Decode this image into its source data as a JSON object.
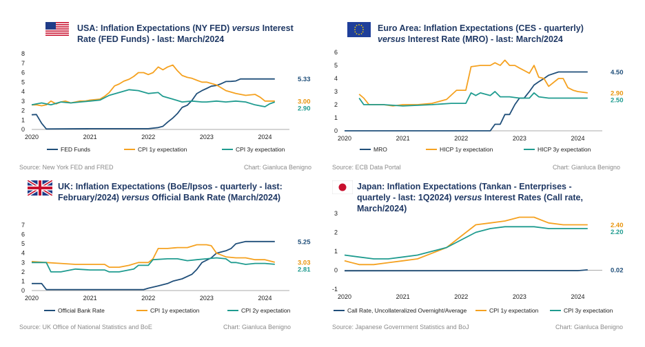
{
  "colors": {
    "navy": "#1f4e79",
    "orange": "#f5a11f",
    "teal": "#1e9b8f",
    "last_orange": "#e8940c"
  },
  "charts": [
    {
      "title": [
        "USA: Inflation Expectations (NY FED) ",
        "versus",
        " Interest Rate (FED Funds) - last: March/2024"
      ],
      "flag": "us-flag-icon",
      "source": "Source: New York FED and FRED",
      "credit": "Chart: Gianluca Benigno"
    },
    {
      "title": [
        "Euro Area: Inflation Expectations (CES - quarterly) ",
        "versus",
        " Interest Rate (MRO)  - last: March/2024"
      ],
      "flag": "eu-flag-icon",
      "source": "Source: ECB Data Portal",
      "credit": "Chart: Gianluca Benigno"
    },
    {
      "title": [
        "UK: Inflation Expectations (BoE/Ipsos - quarterly - last: February/2024) ",
        "versus",
        " Official Bank Rate (March/2024)"
      ],
      "flag": "uk-flag-icon",
      "source": "Source: UK Office of National Statistics and BoE",
      "credit": "Chart: Gianluca Benigno"
    },
    {
      "title": [
        "Japan: Inflation Expectations (Tankan - Enterprises - quartely - last: 1Q2024) ",
        "versus",
        " Interest Rates (Call rate, March/2024)"
      ],
      "flag": "japan-flag-icon",
      "source": "Source: Japanese Government Statistics and BoJ",
      "credit": "Chart: Gianluca Benigno"
    }
  ],
  "chart_data": [
    {
      "type": "line",
      "title": "USA: Inflation Expectations (NY FED) versus Interest Rate (FED Funds) - last: March/2024",
      "xlim": [
        2020,
        2024.42
      ],
      "ylim": [
        0,
        8
      ],
      "xticks": [
        "2020",
        "2021",
        "2022",
        "2023",
        "2024"
      ],
      "yticks": [
        0,
        1,
        2,
        3,
        4,
        5,
        6,
        7,
        8
      ],
      "legend_position": "bottom",
      "series": [
        {
          "name": "FED Funds",
          "color": "#1f4e79",
          "label": "5.33",
          "x": [
            2020.0,
            2020.08,
            2020.17,
            2020.25,
            2021.0,
            2022.0,
            2022.17,
            2022.25,
            2022.33,
            2022.42,
            2022.5,
            2022.58,
            2022.67,
            2022.75,
            2022.83,
            2022.92,
            2023.0,
            2023.08,
            2023.17,
            2023.25,
            2023.33,
            2023.42,
            2023.5,
            2023.58,
            2024.0,
            2024.17
          ],
          "y": [
            1.55,
            1.58,
            0.65,
            0.05,
            0.08,
            0.08,
            0.2,
            0.33,
            0.77,
            1.21,
            1.68,
            2.33,
            2.56,
            3.08,
            3.78,
            4.1,
            4.33,
            4.57,
            4.65,
            4.83,
            5.06,
            5.08,
            5.12,
            5.33,
            5.33,
            5.33
          ]
        },
        {
          "name": "CPI 1y expectation",
          "color": "#f5a11f",
          "label": "3.00",
          "x": [
            2020.0,
            2020.08,
            2020.17,
            2020.25,
            2020.33,
            2020.42,
            2020.5,
            2020.58,
            2020.67,
            2020.75,
            2020.83,
            2020.92,
            2021.0,
            2021.17,
            2021.25,
            2021.33,
            2021.42,
            2021.5,
            2021.58,
            2021.67,
            2021.75,
            2021.83,
            2021.92,
            2022.0,
            2022.08,
            2022.17,
            2022.25,
            2022.33,
            2022.42,
            2022.5,
            2022.58,
            2022.67,
            2022.75,
            2022.83,
            2022.92,
            2023.0,
            2023.17,
            2023.33,
            2023.5,
            2023.67,
            2023.83,
            2023.92,
            2024.0,
            2024.17
          ],
          "y": [
            2.6,
            2.6,
            2.5,
            2.6,
            3.0,
            2.7,
            2.9,
            3.0,
            2.8,
            2.9,
            3.0,
            3.0,
            3.1,
            3.2,
            3.5,
            3.9,
            4.6,
            4.8,
            5.1,
            5.3,
            5.6,
            6.0,
            6.0,
            5.8,
            6.0,
            6.6,
            6.3,
            6.6,
            6.8,
            6.2,
            5.7,
            5.5,
            5.4,
            5.2,
            5.0,
            5.0,
            4.7,
            4.1,
            3.8,
            3.6,
            3.7,
            3.4,
            3.0,
            3.0
          ]
        },
        {
          "name": "CPI 3y expectation",
          "color": "#1e9b8f",
          "label": "2.90",
          "x": [
            2020.0,
            2020.17,
            2020.33,
            2020.5,
            2020.67,
            2020.83,
            2021.0,
            2021.17,
            2021.33,
            2021.5,
            2021.67,
            2021.83,
            2022.0,
            2022.17,
            2022.25,
            2022.42,
            2022.58,
            2022.75,
            2022.92,
            2023.0,
            2023.17,
            2023.33,
            2023.5,
            2023.67,
            2023.83,
            2024.0,
            2024.08,
            2024.17
          ],
          "y": [
            2.6,
            2.8,
            2.6,
            2.9,
            2.8,
            2.9,
            3.0,
            3.1,
            3.6,
            3.9,
            4.2,
            4.1,
            3.8,
            3.9,
            3.5,
            3.2,
            2.9,
            3.0,
            2.9,
            2.9,
            3.0,
            2.9,
            3.0,
            2.9,
            2.6,
            2.4,
            2.7,
            2.9
          ]
        }
      ]
    },
    {
      "type": "line",
      "title": "Euro Area: Inflation Expectations (CES - quarterly) versus Interest Rate (MRO) - last: March/2024",
      "xlim": [
        2020,
        2024.42
      ],
      "ylim": [
        0,
        6
      ],
      "xticks": [
        "2020",
        "2021",
        "2022",
        "2023",
        "2024"
      ],
      "yticks": [
        0,
        1,
        2,
        3,
        4,
        5,
        6
      ],
      "legend_position": "bottom",
      "series": [
        {
          "name": "MRO",
          "color": "#1f4e79",
          "label": "4.50",
          "x": [
            2020.0,
            2022.5,
            2022.58,
            2022.67,
            2022.75,
            2022.83,
            2022.92,
            2023.0,
            2023.08,
            2023.17,
            2023.25,
            2023.33,
            2023.42,
            2023.5,
            2023.67,
            2024.0,
            2024.17
          ],
          "y": [
            0,
            0,
            0.5,
            0.5,
            1.25,
            1.25,
            2.0,
            2.5,
            2.5,
            3.0,
            3.5,
            3.75,
            4.0,
            4.25,
            4.5,
            4.5,
            4.5
          ]
        },
        {
          "name": "HICP 1y expectation",
          "color": "#f5a11f",
          "label": "2.90",
          "x": [
            2020.25,
            2020.33,
            2020.42,
            2020.5,
            2020.67,
            2020.83,
            2021.0,
            2021.25,
            2021.5,
            2021.67,
            2021.75,
            2021.92,
            2022.0,
            2022.08,
            2022.17,
            2022.33,
            2022.5,
            2022.58,
            2022.67,
            2022.75,
            2022.83,
            2022.92,
            2023.0,
            2023.17,
            2023.25,
            2023.33,
            2023.42,
            2023.5,
            2023.67,
            2023.75,
            2023.83,
            2023.92,
            2024.0,
            2024.17
          ],
          "y": [
            2.8,
            2.5,
            2.0,
            2.0,
            2.0,
            1.9,
            2.0,
            2.0,
            2.1,
            2.3,
            2.4,
            3.1,
            3.1,
            3.1,
            4.9,
            5.0,
            5.0,
            5.2,
            5.0,
            5.4,
            5.0,
            5.0,
            4.8,
            4.4,
            5.0,
            4.1,
            4.0,
            3.4,
            4.0,
            4.0,
            3.3,
            3.1,
            3.0,
            2.9
          ]
        },
        {
          "name": "HICP 3y expectation",
          "color": "#1e9b8f",
          "label": "2.50",
          "x": [
            2020.25,
            2020.33,
            2020.42,
            2020.67,
            2021.0,
            2021.5,
            2021.83,
            2022.0,
            2022.08,
            2022.17,
            2022.25,
            2022.33,
            2022.5,
            2022.58,
            2022.67,
            2022.83,
            2023.0,
            2023.17,
            2023.25,
            2023.33,
            2023.5,
            2023.67,
            2023.75,
            2023.83,
            2024.0,
            2024.17
          ],
          "y": [
            2.5,
            2.0,
            2.0,
            2.0,
            1.9,
            2.0,
            2.1,
            2.1,
            2.1,
            2.9,
            2.7,
            2.9,
            2.7,
            3.0,
            2.6,
            2.6,
            2.5,
            2.5,
            2.9,
            2.6,
            2.5,
            2.5,
            2.5,
            2.5,
            2.5,
            2.5
          ]
        }
      ]
    },
    {
      "type": "line",
      "title": "UK: Inflation Expectations (BoE/Ipsos - quarterly - last: February/2024) versus Official Bank Rate (March/2024)",
      "xlim": [
        2020,
        2024.42
      ],
      "ylim": [
        0,
        7
      ],
      "xticks": [
        "2020",
        "2021",
        "2022",
        "2023",
        "2024"
      ],
      "yticks": [
        0,
        1,
        2,
        3,
        4,
        5,
        6,
        7
      ],
      "legend_position": "bottom",
      "series": [
        {
          "name": "Official Bank Rate",
          "color": "#1f4e79",
          "label": "5.25",
          "x": [
            2020.0,
            2020.17,
            2020.25,
            2021.92,
            2022.0,
            2022.17,
            2022.33,
            2022.42,
            2022.58,
            2022.75,
            2022.83,
            2022.92,
            2023.08,
            2023.17,
            2023.33,
            2023.42,
            2023.5,
            2023.67,
            2024.0,
            2024.17
          ],
          "y": [
            0.75,
            0.75,
            0.1,
            0.1,
            0.25,
            0.5,
            0.75,
            1.0,
            1.25,
            1.75,
            2.25,
            3.0,
            3.5,
            4.0,
            4.25,
            4.5,
            5.0,
            5.25,
            5.25,
            5.25
          ]
        },
        {
          "name": "CPI 1y expectation",
          "color": "#f5a11f",
          "label": "3.03",
          "x": [
            2020.0,
            2020.25,
            2020.5,
            2020.75,
            2021.0,
            2021.25,
            2021.33,
            2021.5,
            2021.67,
            2021.83,
            2022.0,
            2022.08,
            2022.17,
            2022.33,
            2022.5,
            2022.67,
            2022.83,
            2023.0,
            2023.08,
            2023.17,
            2023.33,
            2023.5,
            2023.67,
            2023.83,
            2024.0,
            2024.17
          ],
          "y": [
            3.1,
            3.0,
            2.9,
            2.8,
            2.8,
            2.8,
            2.5,
            2.5,
            2.7,
            3.0,
            3.0,
            3.4,
            4.5,
            4.5,
            4.6,
            4.6,
            4.9,
            4.9,
            4.8,
            4.0,
            3.6,
            3.5,
            3.5,
            3.3,
            3.3,
            3.03
          ]
        },
        {
          "name": "CPI 2y expectation",
          "color": "#1e9b8f",
          "label": "2.81",
          "x": [
            2020.0,
            2020.25,
            2020.33,
            2020.5,
            2020.75,
            2021.0,
            2021.25,
            2021.33,
            2021.5,
            2021.75,
            2021.83,
            2022.0,
            2022.08,
            2022.33,
            2022.5,
            2022.67,
            2022.83,
            2023.0,
            2023.17,
            2023.33,
            2023.42,
            2023.5,
            2023.67,
            2023.83,
            2024.0,
            2024.17
          ],
          "y": [
            3.0,
            3.0,
            2.0,
            2.0,
            2.3,
            2.2,
            2.2,
            2.0,
            2.0,
            2.3,
            2.7,
            2.7,
            3.3,
            3.4,
            3.4,
            3.2,
            3.3,
            3.4,
            3.5,
            3.4,
            3.0,
            3.0,
            2.8,
            2.9,
            2.9,
            2.81
          ]
        }
      ]
    },
    {
      "type": "line",
      "title": "Japan: Inflation Expectations (Tankan - Enterprises - quartely - last: 1Q2024) versus Interest Rates (Call rate, March/2024)",
      "xlim": [
        2020,
        2024.42
      ],
      "ylim": [
        -1,
        3
      ],
      "xticks": [
        "2020",
        "2021",
        "2022",
        "2023",
        "2024"
      ],
      "yticks": [
        -1,
        0,
        1,
        2,
        3
      ],
      "legend_position": "bottom",
      "series": [
        {
          "name": "Call Rate, Uncollateralized Overnight/Average",
          "color": "#1f4e79",
          "label": "0.02",
          "x": [
            2020.0,
            2024.0,
            2024.17
          ],
          "y": [
            -0.03,
            -0.02,
            0.02
          ]
        },
        {
          "name": "CPI 1y expectation",
          "color": "#f5a11f",
          "label": "2.40",
          "x": [
            2020.0,
            2020.25,
            2020.5,
            2020.75,
            2021.0,
            2021.25,
            2021.5,
            2021.75,
            2022.0,
            2022.25,
            2022.5,
            2022.75,
            2023.0,
            2023.25,
            2023.5,
            2023.75,
            2024.0,
            2024.17
          ],
          "y": [
            0.5,
            0.3,
            0.3,
            0.4,
            0.5,
            0.6,
            0.9,
            1.2,
            1.8,
            2.4,
            2.5,
            2.6,
            2.8,
            2.8,
            2.5,
            2.4,
            2.4,
            2.4
          ]
        },
        {
          "name": "CPI 3y expectation",
          "color": "#1e9b8f",
          "label": "2.20",
          "x": [
            2020.0,
            2020.25,
            2020.5,
            2020.75,
            2021.0,
            2021.25,
            2021.5,
            2021.75,
            2022.0,
            2022.25,
            2022.5,
            2022.75,
            2023.0,
            2023.25,
            2023.5,
            2023.75,
            2024.0,
            2024.17
          ],
          "y": [
            0.8,
            0.7,
            0.6,
            0.6,
            0.7,
            0.8,
            1.0,
            1.2,
            1.6,
            2.0,
            2.2,
            2.3,
            2.3,
            2.3,
            2.2,
            2.2,
            2.2,
            2.2
          ]
        }
      ]
    }
  ]
}
